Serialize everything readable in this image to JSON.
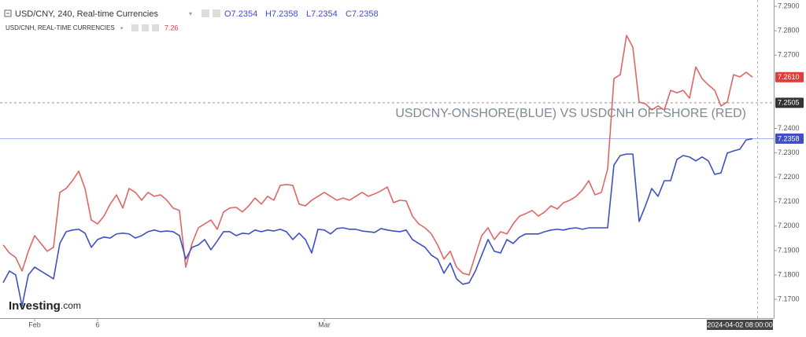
{
  "header": {
    "title": "USD/CNY, 240, Real-time Currencies",
    "open": "O7.2354",
    "high": "H7.2358",
    "low": "L7.2354",
    "close": "C7.2358",
    "second_title": "USD/CNH, REAL-TIME CURRENCIES",
    "second_value": "7.26"
  },
  "logo": {
    "main": "Investing",
    "suffix": ".com"
  },
  "chart_data": {
    "type": "line",
    "annotation": "USDCNY-ONSHORE(BLUE) VS USDCNH OFFSHORE (RED)",
    "x_tag": "2024-04-02 08:00:00",
    "categories": [
      null,
      null,
      null,
      null,
      null,
      "Feb",
      null,
      null,
      null,
      null,
      null,
      null,
      null,
      null,
      null,
      "6",
      null,
      null,
      null,
      null,
      null,
      null,
      null,
      null,
      null,
      null,
      null,
      null,
      null,
      null,
      null,
      null,
      null,
      null,
      null,
      null,
      null,
      null,
      null,
      null,
      null,
      null,
      null,
      null,
      null,
      null,
      null,
      null,
      null,
      null,
      null,
      "Mar",
      null,
      null,
      null,
      null,
      null,
      null,
      null,
      null,
      null,
      null,
      null,
      null,
      null,
      null,
      null,
      null,
      null,
      null,
      null,
      null,
      null,
      null,
      null,
      null,
      null,
      null,
      null,
      null,
      null,
      null,
      null,
      null,
      null,
      null,
      null,
      null,
      null,
      null,
      null,
      null,
      null,
      null,
      null,
      null,
      null,
      null,
      null,
      null,
      null,
      null,
      null,
      null,
      null,
      null,
      null,
      null,
      null,
      null,
      null,
      null,
      null,
      null,
      null,
      null,
      null,
      null,
      null,
      null
    ],
    "series": [
      {
        "color": "#e06666",
        "values": [
          7.1923,
          7.189,
          7.1871,
          7.1816,
          7.1897,
          7.1961,
          7.1929,
          7.1897,
          7.1913,
          7.2138,
          7.2154,
          7.2186,
          7.2225,
          7.2154,
          7.2025,
          7.2009,
          7.2041,
          7.209,
          7.2128,
          7.2074,
          7.2154,
          7.2138,
          7.2106,
          7.2138,
          7.2122,
          7.2128,
          7.2106,
          7.2074,
          7.2064,
          7.1832,
          7.1929,
          7.1993,
          7.2009,
          7.2025,
          7.1987,
          7.2058,
          7.2074,
          7.2077,
          7.2058,
          7.2083,
          7.2115,
          7.209,
          7.2122,
          7.2106,
          7.2167,
          7.217,
          7.2167,
          7.209,
          7.2083,
          7.2106,
          7.2122,
          7.2138,
          7.2122,
          7.2106,
          7.2115,
          7.2106,
          7.2122,
          7.2138,
          7.2122,
          7.2132,
          7.2144,
          7.216,
          7.2096,
          7.2106,
          7.2103,
          7.2041,
          7.2009,
          7.1993,
          7.1968,
          7.1923,
          7.1865,
          7.1897,
          7.1832,
          7.1807,
          7.18,
          7.1881,
          7.1961,
          7.1993,
          7.1945,
          7.1977,
          7.1968,
          7.2009,
          7.2041,
          7.2051,
          7.2064,
          7.2041,
          7.2058,
          7.2083,
          7.207,
          7.2096,
          7.2106,
          7.2122,
          7.2148,
          7.2186,
          7.2128,
          7.2138,
          7.2234,
          7.2604,
          7.262,
          7.2781,
          7.2733,
          7.2508,
          7.2501,
          7.2476,
          7.2492,
          7.2476,
          7.2556,
          7.2546,
          7.2556,
          7.2524,
          7.2652,
          7.2604,
          7.2578,
          7.2556,
          7.2492,
          7.2508,
          7.262,
          7.2611,
          7.263,
          7.261
        ]
      },
      {
        "color": "#3f4fc4",
        "values": [
          7.1768,
          7.1816,
          7.18,
          7.1672,
          7.18,
          7.1832,
          7.1816,
          7.18,
          7.1784,
          7.1929,
          7.1977,
          7.1984,
          7.1987,
          7.1971,
          7.1913,
          7.1945,
          7.1955,
          7.1951,
          7.1968,
          7.1971,
          7.1968,
          7.1951,
          7.1961,
          7.1977,
          7.1984,
          7.1977,
          7.198,
          7.1977,
          7.1961,
          7.1865,
          7.1913,
          7.1923,
          7.1945,
          7.1903,
          7.1939,
          7.1977,
          7.1977,
          7.1961,
          7.1971,
          7.1968,
          7.1984,
          7.1977,
          7.1984,
          7.198,
          7.1987,
          7.1977,
          7.1945,
          7.1971,
          7.1945,
          7.189,
          7.1987,
          7.1984,
          7.1968,
          7.199,
          7.1993,
          7.1987,
          7.1987,
          7.198,
          7.1977,
          7.1974,
          7.199,
          7.1984,
          7.198,
          7.1977,
          7.1984,
          7.1945,
          7.1929,
          7.1913,
          7.1881,
          7.1865,
          7.1807,
          7.1849,
          7.1784,
          7.1762,
          7.1768,
          7.1816,
          7.1881,
          7.1945,
          7.1897,
          7.189,
          7.1945,
          7.1929,
          7.1955,
          7.1968,
          7.1968,
          7.1968,
          7.1977,
          7.1984,
          7.1987,
          7.1984,
          7.199,
          7.1993,
          7.1987,
          7.1993,
          7.1993,
          7.1993,
          7.1993,
          7.225,
          7.2289,
          7.2295,
          7.2295,
          7.2019,
          7.2083,
          7.2154,
          7.2122,
          7.2186,
          7.2186,
          7.2273,
          7.2289,
          7.2283,
          7.2267,
          7.2283,
          7.2267,
          7.2212,
          7.2218,
          7.2299,
          7.2308,
          7.2315,
          7.2353,
          7.2358
        ]
      }
    ],
    "ylim": [
      7.1623,
      7.2926
    ],
    "yticks": [
      {
        "value": 7.29,
        "label": "7.2900"
      },
      {
        "value": 7.28,
        "label": "7.2800"
      },
      {
        "value": 7.27,
        "label": "7.2700"
      },
      {
        "value": 7.24,
        "label": "7.2400"
      },
      {
        "value": 7.23,
        "label": "7.2300"
      },
      {
        "value": 7.22,
        "label": "7.2200"
      },
      {
        "value": 7.21,
        "label": "7.2100"
      },
      {
        "value": 7.2,
        "label": "7.2000"
      },
      {
        "value": 7.19,
        "label": "7.1900"
      },
      {
        "value": 7.18,
        "label": "7.1800"
      },
      {
        "value": 7.17,
        "label": "7.1700"
      }
    ],
    "price_tags": [
      {
        "value": 7.261,
        "label": "7.2610",
        "color": "#e03c3c",
        "line": "none"
      },
      {
        "value": 7.2505,
        "label": "7.2505",
        "color": "#333333",
        "line": "dashed"
      },
      {
        "value": 7.2358,
        "label": "7.2358",
        "color": "#3f4fc4",
        "line": "solid"
      }
    ]
  }
}
